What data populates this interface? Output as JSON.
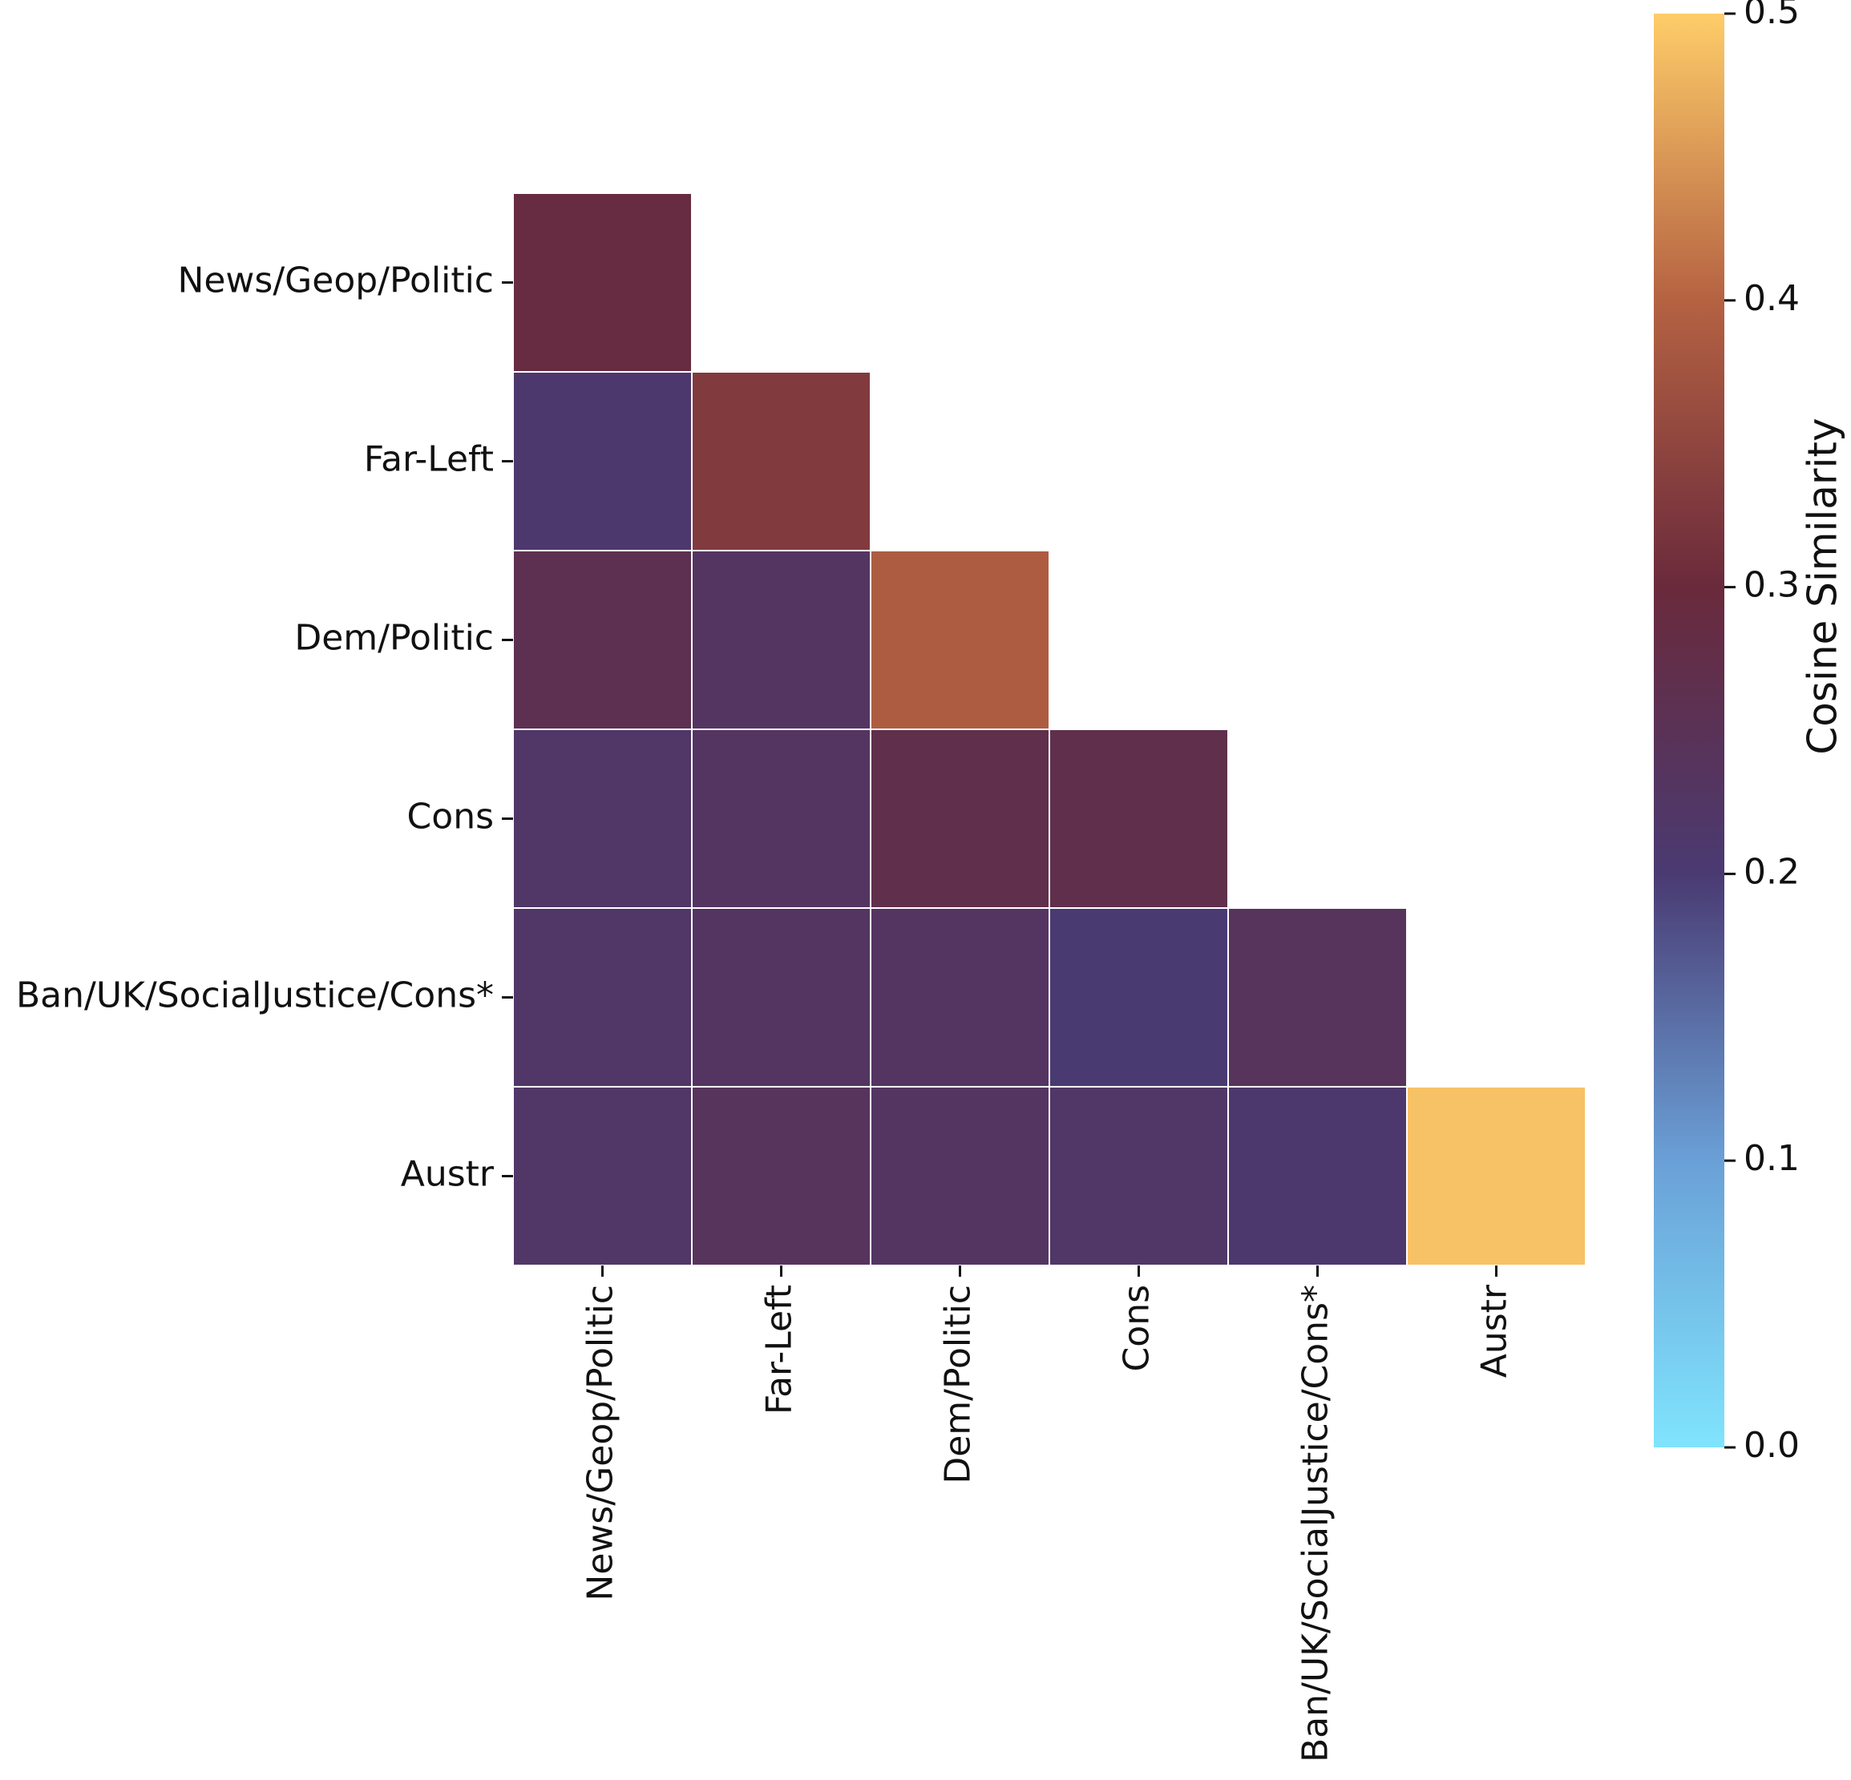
{
  "chart_data": {
    "type": "heatmap",
    "title": "",
    "xlabel": "",
    "ylabel": "",
    "mask": "upper-triangle",
    "row_labels": [
      "News/Geop/Politic",
      "Far-Left",
      "Dem/Politic",
      "Cons",
      "Ban/UK/SocialJustice/Cons*",
      "Austr"
    ],
    "col_labels": [
      "News/Geop/Politic",
      "Far-Left",
      "Dem/Politic",
      "Cons",
      "Ban/UK/SocialJustice/Cons*",
      "Austr"
    ],
    "values": [
      [
        0.29,
        null,
        null,
        null,
        null,
        null
      ],
      [
        0.21,
        0.33,
        null,
        null,
        null,
        null
      ],
      [
        0.26,
        0.23,
        0.39,
        null,
        null,
        null
      ],
      [
        0.22,
        0.23,
        0.27,
        0.27,
        null,
        null
      ],
      [
        0.22,
        0.23,
        0.23,
        0.2,
        0.24,
        null
      ],
      [
        0.22,
        0.24,
        0.23,
        0.22,
        0.21,
        0.49
      ]
    ],
    "colorbar": {
      "label": "Cosine Similarity",
      "range": [
        0.0,
        0.5
      ],
      "ticks": [
        "0.0",
        "0.1",
        "0.2",
        "0.3",
        "0.4",
        "0.5"
      ],
      "position": "right",
      "colormap": [
        {
          "stop": 0.0,
          "color": "#80e4fd"
        },
        {
          "stop": 0.1,
          "color": "#6aa0d7"
        },
        {
          "stop": 0.2,
          "color": "#4a3a72"
        },
        {
          "stop": 0.3,
          "color": "#6a2a3c"
        },
        {
          "stop": 0.4,
          "color": "#b56242"
        },
        {
          "stop": 0.5,
          "color": "#fecd69"
        }
      ]
    },
    "grid": false
  }
}
